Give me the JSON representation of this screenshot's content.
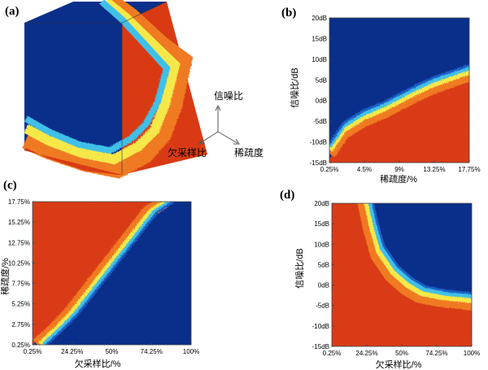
{
  "colors": {
    "dark_blue": "#0a2f8a",
    "blue": "#1f5fc9",
    "cyan": "#3fc0e8",
    "yellow": "#f6e84a",
    "orange": "#ef7a22",
    "red": "#d93a14"
  },
  "chart_data": [
    {
      "panel": "(a)",
      "type": "heatmap",
      "view": "3d-cube",
      "axis_labels": [
        "信噪比",
        "欠采样比",
        "稀疏度"
      ]
    },
    {
      "panel": "(b)",
      "type": "heatmap",
      "xlabel": "稀疏度/%",
      "ylabel": "信噪比/dB",
      "x_ticks": [
        "0.25%",
        "4.5%",
        "9%",
        "13.25%",
        "17.75%"
      ],
      "y_ticks": [
        "20dB",
        "15dB",
        "10dB",
        "5dB",
        "0dB",
        "-5dB",
        "-10dB",
        "-15dB"
      ],
      "xlim": [
        0.25,
        17.75
      ],
      "ylim": [
        -15,
        20
      ],
      "boundary": {
        "x": [
          0.25,
          2,
          4.5,
          7,
          9,
          11,
          13.25,
          15.5,
          17.75
        ],
        "y": [
          -14,
          -9,
          -6,
          -4,
          -2,
          0,
          2,
          3.5,
          5
        ]
      }
    },
    {
      "panel": "(c)",
      "type": "heatmap",
      "xlabel": "欠采样比/%",
      "ylabel": "稀疏度/%",
      "x_ticks": [
        "0.25%",
        "24.25%",
        "50%",
        "74.25%",
        "100%"
      ],
      "y_ticks": [
        "17.75%",
        "15.25%",
        "12.75%",
        "10.25%",
        "7.75%",
        "5.25%",
        "2.75%",
        "0.25%"
      ],
      "xlim": [
        0.25,
        100
      ],
      "ylim": [
        0.25,
        17.75
      ],
      "boundary": {
        "x": [
          0.25,
          10,
          20,
          30,
          40,
          50,
          60,
          70,
          80
        ],
        "y": [
          0.25,
          2,
          4,
          6.5,
          9,
          11.5,
          14,
          16.5,
          17.75
        ]
      }
    },
    {
      "panel": "(d)",
      "type": "heatmap",
      "xlabel": "欠采样比/%",
      "ylabel": "信噪比/dB",
      "x_ticks": [
        "0.25%",
        "24.25%",
        "50%",
        "74.25%",
        "100%"
      ],
      "y_ticks": [
        "20dB",
        "15dB",
        "10dB",
        "5dB",
        "0dB",
        "-5dB",
        "-10dB",
        "-15dB"
      ],
      "xlim": [
        0.25,
        100
      ],
      "ylim": [
        -15,
        20
      ],
      "boundary": {
        "x": [
          20,
          25,
          30,
          40,
          50,
          60,
          75,
          90,
          100
        ],
        "y": [
          20,
          12,
          6,
          1,
          -2,
          -4,
          -5,
          -5.5,
          -6
        ]
      }
    }
  ]
}
